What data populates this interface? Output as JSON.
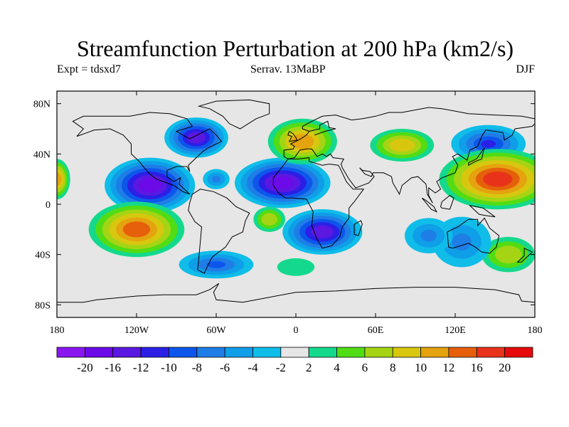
{
  "title": "Streamfunction Perturbation at 200 hPa (km2/s)",
  "left_label": "Expt = tdsxd7",
  "center_label": "Serrav.  13MaBP",
  "right_label": "DJF",
  "chart_data": {
    "type": "heatmap",
    "title": "Streamfunction Perturbation at 200 hPa (km2/s)",
    "subtitle_left": "Expt = tdsxd7",
    "subtitle_center": "Serrav.  13MaBP",
    "subtitle_right": "DJF",
    "xlim": [
      -180,
      180
    ],
    "ylim": [
      -90,
      90
    ],
    "x_ticks": [
      {
        "value": -180,
        "label": "180"
      },
      {
        "value": -120,
        "label": "120W"
      },
      {
        "value": -60,
        "label": "60W"
      },
      {
        "value": 0,
        "label": "0"
      },
      {
        "value": 60,
        "label": "60E"
      },
      {
        "value": 120,
        "label": "120E"
      },
      {
        "value": 180,
        "label": "180"
      }
    ],
    "y_ticks": [
      {
        "value": 80,
        "label": "80N"
      },
      {
        "value": 40,
        "label": "40N"
      },
      {
        "value": 0,
        "label": "0"
      },
      {
        "value": -40,
        "label": "40S"
      },
      {
        "value": -80,
        "label": "80S"
      }
    ],
    "colorbar": {
      "levels": [
        "-20",
        "-16",
        "-12",
        "-10",
        "-8",
        "-6",
        "-4",
        "-2",
        "2",
        "4",
        "6",
        "8",
        "10",
        "12",
        "16",
        "20"
      ],
      "colors": [
        "#8a16ef",
        "#6c0ae8",
        "#5a18e0",
        "#2b1fe6",
        "#0d56ec",
        "#1f7de6",
        "#0f9ee8",
        "#0fbde8",
        "#e6e6e6",
        "#14d98c",
        "#52dc14",
        "#a5d414",
        "#d8c70f",
        "#e4a30f",
        "#e65f0a",
        "#e8321a",
        "#e60a0a"
      ]
    },
    "anomalies": [
      {
        "region": "East Pacific subtropical low",
        "lon": -110,
        "lat": 15,
        "value": -17
      },
      {
        "region": "Atlantic subtropical low",
        "lon": -10,
        "lat": 17,
        "value": -18
      },
      {
        "region": "North America low",
        "lon": -75,
        "lat": 53,
        "value": -14
      },
      {
        "region": "South Atlantic / Africa low",
        "lon": 20,
        "lat": -22,
        "value": -13
      },
      {
        "region": "NW Pacific low",
        "lon": 145,
        "lat": 48,
        "value": -10
      },
      {
        "region": "Caribbean low",
        "lon": -60,
        "lat": 20,
        "value": -6
      },
      {
        "region": "SE Pacific high",
        "lon": -120,
        "lat": -20,
        "value": 13
      },
      {
        "region": "West Pacific high",
        "lon": 152,
        "lat": 20,
        "value": 17
      },
      {
        "region": "Europe high",
        "lon": 5,
        "lat": 50,
        "value": 12
      },
      {
        "region": "Central Asia high",
        "lon": 80,
        "lat": 47,
        "value": 10
      },
      {
        "region": "Dateline west high",
        "lon": -180,
        "lat": 20,
        "value": 12
      },
      {
        "region": "South Atlantic high",
        "lon": -20,
        "lat": -12,
        "value": 8
      },
      {
        "region": "South Atlantic midlat high",
        "lon": 0,
        "lat": -50,
        "value": 4
      },
      {
        "region": "Southern Ocean high",
        "lon": 160,
        "lat": -40,
        "value": 8
      },
      {
        "region": "Australia low",
        "lon": 125,
        "lat": -30,
        "value": -6
      },
      {
        "region": "South Pacific low",
        "lon": -60,
        "lat": -48,
        "value": -8
      },
      {
        "region": "South Indian low",
        "lon": 100,
        "lat": -25,
        "value": -6
      }
    ]
  }
}
